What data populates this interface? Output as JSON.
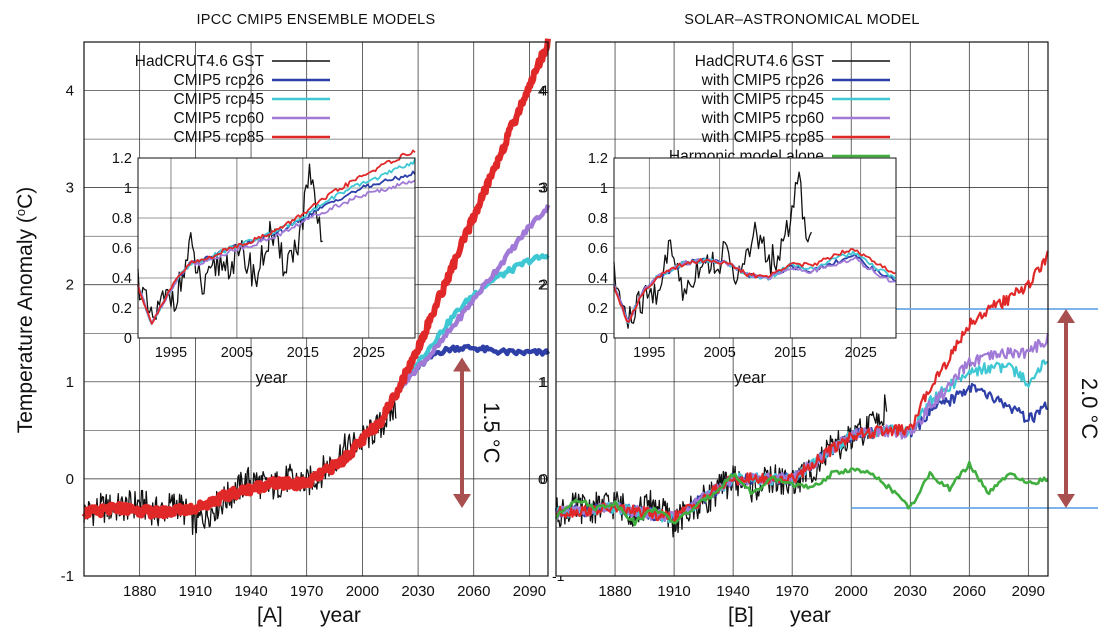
{
  "figure": {
    "ylabel": "Temperature Anomaly (°C)",
    "ylabel_main": "Temperature Anomaly (",
    "ylabel_sup": "o",
    "ylabel_end": "C)"
  },
  "colors": {
    "hadcrut": "#111111",
    "rcp26": "#2f3fa8",
    "rcp45": "#3fc8d4",
    "rcp60": "#a07ad6",
    "rcp85": "#e02828",
    "harmonic": "#3fae3f",
    "arrow": "#a85050",
    "guide": "#6aa9e6"
  },
  "chart_data": [
    {
      "id": "A",
      "type": "line",
      "title": "IPCC CMIP5 ENSEMBLE MODELS",
      "panel_label": "[A]",
      "xlabel": "year",
      "ylabel": "Temperature Anomaly (°C)",
      "xlim": [
        1850,
        2100
      ],
      "ylim": [
        -1,
        4.5
      ],
      "x_ticks": [
        1880,
        1910,
        1940,
        1970,
        2000,
        2030,
        2060,
        2090
      ],
      "y_ticks": [
        -1,
        0,
        1,
        2,
        3,
        4
      ],
      "grid": true,
      "legend_position": "top-left",
      "series": [
        {
          "name": "HadCRUT4.6 GST",
          "key": "hadcrut",
          "x": [
            1850,
            1860,
            1870,
            1880,
            1890,
            1900,
            1910,
            1920,
            1930,
            1940,
            1950,
            1960,
            1970,
            1980,
            1990,
            2000,
            2010,
            2018
          ],
          "y": [
            -0.35,
            -0.3,
            -0.3,
            -0.25,
            -0.35,
            -0.25,
            -0.45,
            -0.3,
            -0.15,
            0.0,
            -0.1,
            0.0,
            -0.05,
            0.1,
            0.3,
            0.4,
            0.55,
            0.75
          ]
        },
        {
          "name": "CMIP5 rcp26",
          "key": "rcp26",
          "x": [
            2020,
            2030,
            2040,
            2050,
            2060,
            2070,
            2080,
            2090,
            2100
          ],
          "y": [
            0.95,
            1.15,
            1.3,
            1.35,
            1.35,
            1.32,
            1.3,
            1.3,
            1.3
          ]
        },
        {
          "name": "CMIP5 rcp45",
          "key": "rcp45",
          "x": [
            2020,
            2030,
            2040,
            2050,
            2060,
            2070,
            2080,
            2090,
            2100
          ],
          "y": [
            0.95,
            1.2,
            1.45,
            1.7,
            1.9,
            2.05,
            2.15,
            2.25,
            2.3
          ]
        },
        {
          "name": "CMIP5 rcp60",
          "key": "rcp60",
          "x": [
            2020,
            2030,
            2040,
            2050,
            2060,
            2070,
            2080,
            2090,
            2100
          ],
          "y": [
            0.95,
            1.15,
            1.35,
            1.6,
            1.85,
            2.1,
            2.35,
            2.6,
            2.8
          ]
        },
        {
          "name": "CMIP5 rcp85",
          "key": "rcp85",
          "x": [
            1850,
            1870,
            1890,
            1910,
            1930,
            1950,
            1970,
            1990,
            2000,
            2010,
            2020,
            2030,
            2040,
            2050,
            2060,
            2070,
            2080,
            2090,
            2100
          ],
          "y": [
            -0.35,
            -0.3,
            -0.35,
            -0.3,
            -0.15,
            -0.05,
            -0.05,
            0.2,
            0.4,
            0.6,
            0.95,
            1.35,
            1.8,
            2.25,
            2.7,
            3.15,
            3.6,
            4.05,
            4.5
          ]
        }
      ],
      "annotation": {
        "text": "1.5 °C",
        "y_from": 1.25,
        "y_to": -0.3,
        "x": 2052
      },
      "inset": {
        "xlabel": "year",
        "xlim": [
          1990,
          2032
        ],
        "ylim": [
          0,
          1.2
        ],
        "x_ticks": [
          1995,
          2005,
          2015,
          2025
        ],
        "y_ticks": [
          0,
          0.2,
          0.4,
          0.6,
          0.8,
          1,
          1.2
        ],
        "series": [
          {
            "key": "hadcrut",
            "x": [
              1990,
              1992,
              1994,
              1996,
              1998,
              2000,
              2002,
              2004,
              2006,
              2008,
              2010,
              2012,
              2014,
              2015,
              2016,
              2017,
              2018
            ],
            "y": [
              0.4,
              0.1,
              0.25,
              0.3,
              0.6,
              0.3,
              0.5,
              0.5,
              0.55,
              0.4,
              0.7,
              0.5,
              0.6,
              0.8,
              1.1,
              0.8,
              0.65
            ]
          },
          {
            "key": "rcp26",
            "x": [
              1990,
              1992,
              1994,
              1996,
              1998,
              2000,
              2004,
              2008,
              2012,
              2016,
              2020,
              2024,
              2028,
              2032
            ],
            "y": [
              0.35,
              0.1,
              0.25,
              0.4,
              0.5,
              0.52,
              0.6,
              0.65,
              0.72,
              0.82,
              0.92,
              1.0,
              1.05,
              1.1
            ]
          },
          {
            "key": "rcp45",
            "x": [
              1990,
              1992,
              1994,
              1996,
              1998,
              2000,
              2004,
              2008,
              2012,
              2016,
              2020,
              2024,
              2028,
              2032
            ],
            "y": [
              0.35,
              0.1,
              0.25,
              0.4,
              0.5,
              0.52,
              0.6,
              0.66,
              0.73,
              0.84,
              0.95,
              1.03,
              1.1,
              1.18
            ]
          },
          {
            "key": "rcp60",
            "x": [
              1990,
              1992,
              1994,
              1996,
              1998,
              2000,
              2004,
              2008,
              2012,
              2016,
              2020,
              2024,
              2028,
              2032
            ],
            "y": [
              0.35,
              0.1,
              0.25,
              0.4,
              0.5,
              0.5,
              0.58,
              0.63,
              0.7,
              0.8,
              0.88,
              0.95,
              1.0,
              1.05
            ]
          },
          {
            "key": "rcp85",
            "x": [
              1990,
              1992,
              1994,
              1996,
              1998,
              2000,
              2004,
              2008,
              2012,
              2016,
              2020,
              2024,
              2028,
              2032
            ],
            "y": [
              0.35,
              0.1,
              0.25,
              0.4,
              0.5,
              0.52,
              0.6,
              0.66,
              0.74,
              0.86,
              0.98,
              1.08,
              1.17,
              1.25
            ]
          }
        ]
      }
    },
    {
      "id": "B",
      "type": "line",
      "title": "SOLAR–ASTRONOMICAL MODEL",
      "panel_label": "[B]",
      "xlabel": "year",
      "xlim": [
        1850,
        2100
      ],
      "ylim": [
        -1,
        4.5
      ],
      "x_ticks": [
        1880,
        1910,
        1940,
        1970,
        2000,
        2030,
        2060,
        2090
      ],
      "y_ticks": [
        -1,
        0,
        1,
        2,
        3,
        4
      ],
      "y_tick_labels_visible": [
        0,
        1,
        2,
        3,
        4
      ],
      "grid": true,
      "legend_position": "top-left",
      "series": [
        {
          "name": "HadCRUT4.6 GST",
          "key": "hadcrut",
          "x": [
            1850,
            1860,
            1870,
            1880,
            1890,
            1900,
            1910,
            1920,
            1930,
            1940,
            1950,
            1960,
            1970,
            1980,
            1990,
            2000,
            2010,
            2018
          ],
          "y": [
            -0.35,
            -0.3,
            -0.3,
            -0.25,
            -0.35,
            -0.25,
            -0.45,
            -0.3,
            -0.15,
            0.0,
            -0.1,
            0.0,
            -0.05,
            0.1,
            0.3,
            0.4,
            0.55,
            0.75
          ]
        },
        {
          "name": "with CMIP5 rcp26",
          "key": "rcp26",
          "x": [
            1850,
            1880,
            1910,
            1940,
            1970,
            2000,
            2020,
            2030,
            2040,
            2050,
            2060,
            2070,
            2080,
            2090,
            2100
          ],
          "y": [
            -0.35,
            -0.3,
            -0.4,
            0.0,
            0.0,
            0.45,
            0.5,
            0.45,
            0.7,
            0.8,
            0.95,
            0.85,
            0.75,
            0.6,
            0.75
          ]
        },
        {
          "name": "with CMIP5 rcp45",
          "key": "rcp45",
          "x": [
            1850,
            1880,
            1910,
            1940,
            1970,
            2000,
            2020,
            2030,
            2040,
            2050,
            2060,
            2070,
            2080,
            2090,
            2100
          ],
          "y": [
            -0.35,
            -0.3,
            -0.4,
            0.0,
            0.0,
            0.45,
            0.5,
            0.48,
            0.8,
            0.95,
            1.1,
            1.15,
            1.15,
            1.0,
            1.25
          ]
        },
        {
          "name": "with CMIP5 rcp60",
          "key": "rcp60",
          "x": [
            1850,
            1880,
            1910,
            1940,
            1970,
            2000,
            2020,
            2030,
            2040,
            2050,
            2060,
            2070,
            2080,
            2090,
            2100
          ],
          "y": [
            -0.35,
            -0.3,
            -0.4,
            0.0,
            0.0,
            0.45,
            0.5,
            0.45,
            0.75,
            0.95,
            1.2,
            1.25,
            1.3,
            1.3,
            1.45
          ]
        },
        {
          "name": "with CMIP5 rcp85",
          "key": "rcp85",
          "x": [
            1850,
            1880,
            1910,
            1940,
            1970,
            2000,
            2020,
            2030,
            2040,
            2050,
            2060,
            2070,
            2080,
            2090,
            2100
          ],
          "y": [
            -0.35,
            -0.3,
            -0.4,
            0.0,
            0.0,
            0.45,
            0.5,
            0.5,
            0.95,
            1.25,
            1.6,
            1.75,
            1.85,
            2.0,
            2.3
          ]
        },
        {
          "name": "Harmonic model alone",
          "key": "harmonic",
          "x": [
            1850,
            1860,
            1870,
            1880,
            1890,
            1900,
            1910,
            1920,
            1930,
            1940,
            1950,
            1960,
            1970,
            1980,
            1990,
            2000,
            2010,
            2020,
            2030,
            2040,
            2050,
            2060,
            2070,
            2080,
            2090,
            2100
          ],
          "y": [
            -0.4,
            -0.2,
            -0.3,
            -0.25,
            -0.45,
            -0.3,
            -0.45,
            -0.3,
            -0.15,
            0.05,
            -0.15,
            0.0,
            -0.05,
            -0.1,
            0.05,
            0.1,
            0.05,
            -0.1,
            -0.3,
            0.05,
            -0.1,
            0.15,
            -0.15,
            0.05,
            -0.05,
            0.0
          ]
        }
      ],
      "annotation": {
        "text": "2.0 °C",
        "y_from": 1.75,
        "y_to": -0.3
      },
      "guide_lines": [
        1.75,
        -0.3
      ],
      "inset": {
        "xlabel": "year",
        "xlim": [
          1990,
          2030
        ],
        "ylim": [
          0,
          1.2
        ],
        "x_ticks": [
          1995,
          2005,
          2015,
          2025
        ],
        "y_ticks": [
          0,
          0.2,
          0.4,
          0.6,
          0.8,
          1,
          1.2
        ],
        "series": [
          {
            "key": "hadcrut",
            "x": [
              1990,
              1992,
              1994,
              1996,
              1998,
              2000,
              2002,
              2004,
              2006,
              2008,
              2010,
              2012,
              2014,
              2015,
              2016,
              2017,
              2018
            ],
            "y": [
              0.4,
              0.1,
              0.25,
              0.3,
              0.6,
              0.3,
              0.5,
              0.5,
              0.55,
              0.4,
              0.7,
              0.5,
              0.6,
              0.8,
              1.1,
              0.8,
              0.65
            ]
          },
          {
            "key": "rcp26",
            "x": [
              1990,
              1992,
              1994,
              1996,
              1998,
              2000,
              2003,
              2006,
              2009,
              2012,
              2015,
              2018,
              2021,
              2024,
              2027,
              2030
            ],
            "y": [
              0.35,
              0.1,
              0.3,
              0.4,
              0.45,
              0.5,
              0.52,
              0.5,
              0.42,
              0.4,
              0.48,
              0.45,
              0.5,
              0.55,
              0.45,
              0.38
            ]
          },
          {
            "key": "rcp45",
            "x": [
              1990,
              1992,
              1994,
              1996,
              1998,
              2000,
              2003,
              2006,
              2009,
              2012,
              2015,
              2018,
              2021,
              2024,
              2027,
              2030
            ],
            "y": [
              0.35,
              0.1,
              0.3,
              0.4,
              0.45,
              0.5,
              0.52,
              0.5,
              0.42,
              0.4,
              0.49,
              0.46,
              0.52,
              0.57,
              0.47,
              0.4
            ]
          },
          {
            "key": "rcp60",
            "x": [
              1990,
              1992,
              1994,
              1996,
              1998,
              2000,
              2003,
              2006,
              2009,
              2012,
              2015,
              2018,
              2021,
              2024,
              2027,
              2030
            ],
            "y": [
              0.35,
              0.1,
              0.3,
              0.4,
              0.45,
              0.5,
              0.52,
              0.5,
              0.42,
              0.4,
              0.47,
              0.44,
              0.49,
              0.53,
              0.44,
              0.36
            ]
          },
          {
            "key": "rcp85",
            "x": [
              1990,
              1992,
              1994,
              1996,
              1998,
              2000,
              2003,
              2006,
              2009,
              2012,
              2015,
              2018,
              2021,
              2024,
              2027,
              2030
            ],
            "y": [
              0.35,
              0.1,
              0.3,
              0.4,
              0.45,
              0.5,
              0.52,
              0.5,
              0.42,
              0.41,
              0.5,
              0.48,
              0.55,
              0.6,
              0.5,
              0.43
            ]
          }
        ]
      }
    }
  ]
}
